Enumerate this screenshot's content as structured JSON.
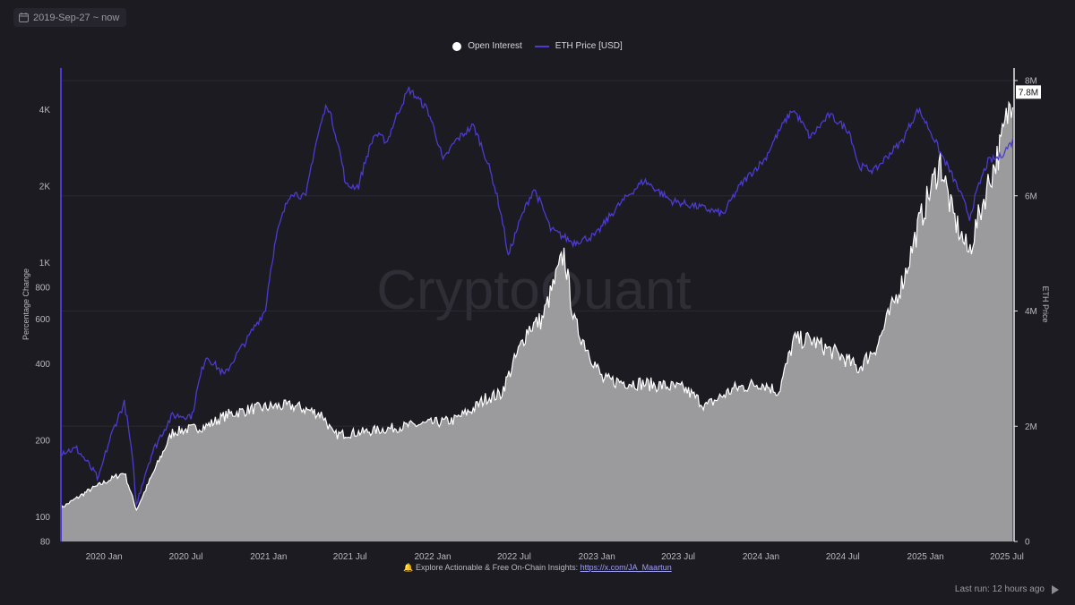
{
  "date_range": {
    "label": "2019-Sep-27 ~ now"
  },
  "legend": {
    "open_interest": "Open Interest",
    "eth_price": "ETH Price [USD]"
  },
  "watermark": "CryptoQuant",
  "footer": {
    "text": "Explore Actionable & Free On-Chain Insights:",
    "link": "https://x.com/JA_Maartun"
  },
  "last_run": "Last run: 12 hours ago",
  "colors": {
    "background": "#1c1b22",
    "eth_price": "#4b3bd0",
    "open_interest_line": "#ffffff",
    "open_interest_fill": "#9b9b9e"
  },
  "chart_data": {
    "type": "line",
    "x_range": [
      "2019-09-27",
      "2025-07-15"
    ],
    "x_ticks": [
      "2020 Jan",
      "2020 Jul",
      "2021 Jan",
      "2021 Jul",
      "2022 Jan",
      "2022 Jul",
      "2023 Jan",
      "2023 Jul",
      "2024 Jan",
      "2024 Jul",
      "2025 Jan",
      "2025 Jul"
    ],
    "y_left": {
      "label": "Percentage Change",
      "scale": "log",
      "range": [
        80,
        5200
      ],
      "ticks": [
        80,
        100,
        200,
        400,
        600,
        800,
        1000,
        2000,
        4000
      ]
    },
    "y_right": {
      "label": "ETH Price",
      "scale": "linear",
      "range": [
        0,
        8000000
      ],
      "ticks": [
        "0",
        "2M",
        "4M",
        "6M",
        "8M"
      ]
    },
    "current_value_label": "7.8M",
    "series": [
      {
        "name": "ETH Price [USD]",
        "axis": "left",
        "x": [
          "2019-09-27",
          "2019-11-01",
          "2019-12-20",
          "2020-02-15",
          "2020-03-13",
          "2020-04-15",
          "2020-06-01",
          "2020-07-15",
          "2020-08-15",
          "2020-09-25",
          "2020-11-15",
          "2020-12-25",
          "2021-01-20",
          "2021-02-20",
          "2021-03-25",
          "2021-05-11",
          "2021-06-22",
          "2021-07-20",
          "2021-08-25",
          "2021-09-22",
          "2021-11-09",
          "2021-12-20",
          "2022-01-24",
          "2022-02-20",
          "2022-04-01",
          "2022-05-15",
          "2022-06-18",
          "2022-07-20",
          "2022-08-14",
          "2022-09-20",
          "2022-11-09",
          "2022-12-30",
          "2023-02-15",
          "2023-04-16",
          "2023-06-15",
          "2023-08-20",
          "2023-10-10",
          "2023-11-15",
          "2024-01-10",
          "2024-03-12",
          "2024-04-20",
          "2024-06-01",
          "2024-07-15",
          "2024-08-05",
          "2024-09-10",
          "2024-11-10",
          "2024-12-16",
          "2025-02-03",
          "2025-03-01",
          "2025-04-09",
          "2025-05-20",
          "2025-06-15",
          "2025-07-14"
        ],
        "y": [
          180,
          185,
          140,
          280,
          110,
          175,
          250,
          250,
          430,
          360,
          500,
          650,
          1300,
          1900,
          1800,
          4200,
          2000,
          2000,
          3200,
          3000,
          4800,
          4000,
          2500,
          3000,
          3450,
          2100,
          1050,
          1550,
          1950,
          1350,
          1200,
          1280,
          1650,
          2100,
          1750,
          1650,
          1550,
          2000,
          2550,
          4000,
          3100,
          3800,
          3300,
          2400,
          2300,
          3000,
          4000,
          2700,
          2200,
          1500,
          2500,
          2600,
          3000
        ]
      },
      {
        "name": "Open Interest",
        "axis": "right",
        "x": [
          "2019-09-27",
          "2019-12-01",
          "2020-02-15",
          "2020-03-13",
          "2020-04-20",
          "2020-06-01",
          "2020-08-15",
          "2020-10-01",
          "2020-11-25",
          "2021-01-20",
          "2021-03-01",
          "2021-05-01",
          "2021-05-25",
          "2021-08-01",
          "2021-11-01",
          "2021-12-25",
          "2022-02-15",
          "2022-04-01",
          "2022-05-01",
          "2022-06-01",
          "2022-08-01",
          "2022-09-01",
          "2022-10-20",
          "2022-11-12",
          "2023-01-15",
          "2023-04-01",
          "2023-06-01",
          "2023-07-15",
          "2023-09-01",
          "2023-11-01",
          "2024-01-01",
          "2024-02-10",
          "2024-03-14",
          "2024-04-20",
          "2024-07-01",
          "2024-08-05",
          "2024-09-15",
          "2024-11-15",
          "2024-12-17",
          "2025-02-03",
          "2025-03-01",
          "2025-04-07",
          "2025-05-20",
          "2025-06-15",
          "2025-07-14"
        ],
        "y": [
          580000,
          900000,
          1200000,
          550000,
          1200000,
          1900000,
          2000000,
          2200000,
          2300000,
          2350000,
          2350000,
          2200000,
          1850000,
          1900000,
          2000000,
          2050000,
          2100000,
          2300000,
          2500000,
          2550000,
          3700000,
          3850000,
          5000000,
          3800000,
          2800000,
          2750000,
          2700000,
          2650000,
          2350000,
          2650000,
          2750000,
          2600000,
          3500000,
          3500000,
          3200000,
          3000000,
          3400000,
          4600000,
          5500000,
          6600000,
          5700000,
          5000000,
          6200000,
          6800000,
          7800000
        ]
      }
    ]
  }
}
